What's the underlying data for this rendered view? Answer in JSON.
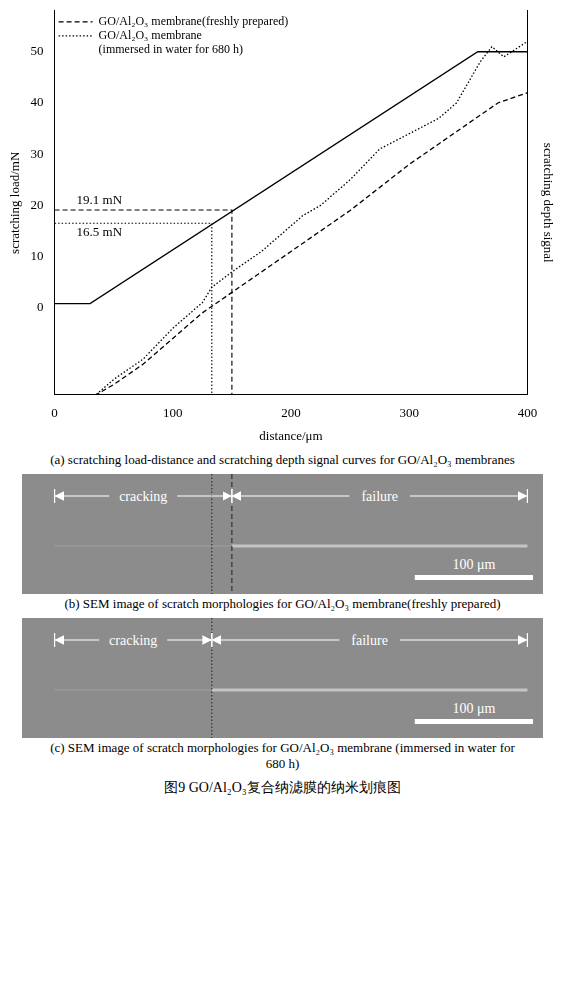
{
  "chart_data": {
    "type": "line",
    "xlabel": "distance/μm",
    "ylabel": "scratching load/mN",
    "y2label": "scratching depth signal",
    "xlim": [
      0,
      400
    ],
    "xticks": [
      0,
      100,
      200,
      300,
      400
    ],
    "ylim": [
      -17,
      58
    ],
    "yticks": [
      0,
      10,
      20,
      30,
      40,
      50
    ],
    "y2lim": [
      -17,
      58
    ],
    "y2ticks": [],
    "grid": false,
    "legend": "upper left",
    "series": [
      {
        "color": "#000000",
        "line_style": "solid",
        "x": [
          0,
          30,
          358,
          400
        ],
        "values": [
          0.8,
          0.8,
          50,
          50
        ]
      },
      {
        "name": "GO/Al₂O₃ membrane(freshly prepared)",
        "color": "#000000",
        "line_style": "dashed",
        "axis": "y2",
        "x": [
          0,
          35,
          50,
          75,
          100,
          125,
          150,
          175,
          200,
          250,
          300,
          325,
          350,
          375,
          400
        ],
        "values": [
          -17,
          -17,
          -15,
          -11,
          -6,
          -1,
          3,
          7,
          11,
          19,
          28,
          32,
          36,
          40,
          42
        ]
      },
      {
        "name": "GO/Al₂O₃ membrane (immersed in water for 680 h)",
        "color": "#000000",
        "line_style": "dotted",
        "axis": "y2",
        "x": [
          0,
          35,
          50,
          75,
          100,
          125,
          133,
          150,
          175,
          200,
          210,
          225,
          250,
          275,
          300,
          325,
          340,
          360,
          370,
          380,
          400
        ],
        "values": [
          -17,
          -17,
          -14,
          -10,
          -4,
          1,
          4,
          7,
          11,
          16,
          18,
          20,
          25,
          31,
          34,
          37,
          40,
          48,
          51,
          49,
          52
        ]
      }
    ],
    "annotations": [
      {
        "text": "19.1 mN",
        "x": 150,
        "y": 19.1,
        "line_style": "dashed"
      },
      {
        "text": "16.5 mN",
        "x": 133,
        "y": 16.5,
        "line_style": "dotted"
      }
    ],
    "caption": "(a) scratching load-distance and scratching depth signal curves for GO/Al₂O₃ membranes"
  },
  "panels": [
    {
      "caption": "(b) SEM image of scratch morphologies for GO/Al₂O₃ membrane(freshly prepared)",
      "regions": [
        {
          "text": "cracking",
          "from": 0,
          "to": 150
        },
        {
          "text": "failure",
          "from": 150,
          "to": 400
        }
      ],
      "markers": [
        {
          "x": 150,
          "line_style": "dashed"
        },
        {
          "x": 133,
          "line_style": "dotted"
        }
      ],
      "scale_bar": {
        "value": 100,
        "label": "100 μm"
      }
    },
    {
      "caption": "(c) SEM image of scratch morphologies for GO/Al₂O₃ membrane (immersed in water for 680 h)",
      "regions": [
        {
          "text": "cracking",
          "from": 0,
          "to": 133
        },
        {
          "text": "failure",
          "from": 133,
          "to": 400
        }
      ],
      "markers": [
        {
          "x": 133,
          "line_style": "dotted"
        }
      ],
      "scale_bar": {
        "value": 100,
        "label": "100 μm"
      }
    }
  ],
  "figure_caption": "图9 GO/Al₂O₃复合纳滤膜的纳米划痕图"
}
